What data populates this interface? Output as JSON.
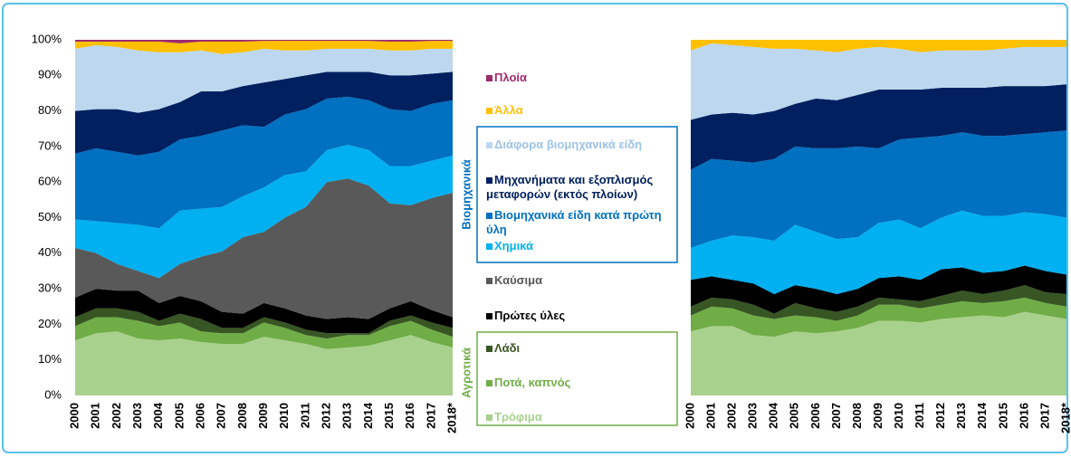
{
  "chart_data": [
    {
      "type": "area",
      "stacked": true,
      "x": [
        "2000",
        "2001",
        "2002",
        "2003",
        "2004",
        "2005",
        "2006",
        "2007",
        "2008",
        "2009",
        "2010",
        "2011",
        "2012",
        "2013",
        "2014",
        "2015",
        "2016",
        "2017",
        "2018*"
      ],
      "ylim": [
        0,
        100
      ],
      "yticks": [
        {
          "value": 0,
          "label": "0%"
        },
        {
          "value": 10,
          "label": "10%"
        },
        {
          "value": 20,
          "label": "20%"
        },
        {
          "value": 30,
          "label": "30%"
        },
        {
          "value": 40,
          "label": "40%"
        },
        {
          "value": 50,
          "label": "50%"
        },
        {
          "value": 60,
          "label": "60%"
        },
        {
          "value": 70,
          "label": "70%"
        },
        {
          "value": 80,
          "label": "80%"
        },
        {
          "value": 90,
          "label": "90%"
        },
        {
          "value": 100,
          "label": "100%"
        }
      ],
      "legend_groups": [
        "Βιομηχανικά",
        "Αγροτικά"
      ],
      "series": [
        {
          "name": "Τρόφιμα",
          "color": "#a9d18e",
          "values": [
            15.5,
            17.5,
            18,
            16,
            15.5,
            16,
            15,
            14.5,
            14.5,
            16.5,
            15.5,
            14.5,
            13,
            13.5,
            14,
            15.5,
            17,
            15,
            13.5
          ]
        },
        {
          "name": "Ποτά, καπνός",
          "color": "#70ad47",
          "values": [
            4,
            4.5,
            4,
            5,
            4,
            4.5,
            3,
            3,
            3,
            4,
            3.5,
            2.5,
            3,
            3.5,
            3,
            4,
            4,
            3.5,
            3
          ]
        },
        {
          "name": "Λάδι",
          "color": "#375623",
          "values": [
            2.5,
            2.5,
            2.5,
            2.5,
            1.5,
            2.5,
            3.5,
            1.5,
            1.5,
            1.5,
            1.5,
            1.5,
            1.5,
            0.5,
            0.5,
            1.5,
            1.5,
            2,
            2.5
          ]
        },
        {
          "name": "Πρώτες ύλες",
          "color": "#000000",
          "values": [
            5.5,
            5.5,
            5,
            6,
            5,
            5,
            5,
            4.5,
            4,
            4,
            4,
            4,
            4,
            4.5,
            4,
            3.5,
            4,
            3.5,
            3
          ]
        },
        {
          "name": "Καύσιμα",
          "color": "#595959",
          "values": [
            14,
            10,
            7.5,
            5.5,
            7,
            9,
            12.5,
            17,
            21.5,
            20,
            25.5,
            30.5,
            38.5,
            39,
            37.5,
            29.5,
            27,
            31.5,
            35
          ]
        },
        {
          "name": "Χημικά",
          "color": "#00b0f0",
          "values": [
            8,
            9,
            11.5,
            13,
            14,
            15,
            13.5,
            12.5,
            11.5,
            12.5,
            12,
            10,
            9,
            9.5,
            10,
            10.5,
            11,
            10.5,
            10.5
          ]
        },
        {
          "name": "Βιομηχανικά είδη κατά πρώτη ύλη",
          "color": "#0070c0",
          "values": [
            18.5,
            20.5,
            20,
            19.5,
            21.5,
            20,
            20.5,
            21.5,
            20,
            17,
            17,
            17.5,
            14.5,
            13.5,
            14,
            16,
            15.5,
            16,
            15.5
          ]
        },
        {
          "name": "Μηχανήματα και εξοπλισμός μεταφορών (εκτός πλοίων)",
          "color": "#002060",
          "values": [
            12,
            11,
            12,
            12,
            12,
            10.5,
            12.5,
            11,
            11,
            12.5,
            10,
            9.5,
            7.5,
            7,
            8,
            9.5,
            10,
            8.5,
            8
          ]
        },
        {
          "name": "Διάφορα βιομηχανικά είδη",
          "color": "#bdd7ee",
          "values": [
            17.5,
            18,
            17.5,
            17.5,
            16,
            14,
            11.5,
            10.5,
            9.5,
            9.5,
            8,
            7,
            6.5,
            6.5,
            6.5,
            7,
            7,
            7,
            6.5
          ]
        },
        {
          "name": "Άλλα",
          "color": "#ffc000",
          "values": [
            2,
            1,
            1.5,
            2.5,
            3,
            2.5,
            2.5,
            3.5,
            3,
            2.2,
            2.7,
            2.7,
            2.2,
            2.2,
            2.2,
            2.5,
            2.5,
            2.2,
            2.2
          ]
        },
        {
          "name": "Πλοία",
          "color": "#9e2a6e",
          "values": [
            0.5,
            0.5,
            0.5,
            0.5,
            0.5,
            1,
            0.5,
            0.5,
            0.5,
            0.3,
            0.3,
            0.3,
            0.3,
            0.3,
            0.3,
            0.5,
            0.5,
            0.3,
            0.3
          ]
        }
      ]
    },
    {
      "type": "area",
      "stacked": true,
      "x": [
        "2000",
        "2001",
        "2002",
        "2003",
        "2004",
        "2005",
        "2006",
        "2007",
        "2008",
        "2009",
        "2010",
        "2011",
        "2012",
        "2013",
        "2014",
        "2015",
        "2016",
        "2017",
        "2018*"
      ],
      "ylim": [
        0,
        100
      ],
      "series": [
        {
          "values": [
            18,
            19.5,
            19.5,
            17,
            16.5,
            18,
            17.5,
            18,
            19,
            21,
            21,
            20.5,
            21.5,
            22,
            22.5,
            22,
            23.5,
            22.5,
            21.5
          ]
        },
        {
          "values": [
            4.5,
            5.5,
            5,
            5.5,
            5,
            4.5,
            4.5,
            3,
            3.5,
            4.5,
            4.5,
            4,
            4,
            4.5,
            3.5,
            4.5,
            4,
            3.5,
            3.5
          ]
        },
        {
          "values": [
            2.5,
            2.5,
            2.5,
            3,
            1.5,
            3.5,
            2.5,
            2.5,
            2.5,
            2,
            1.5,
            2,
            2.5,
            3,
            2.5,
            3,
            3.5,
            3,
            3.5
          ]
        },
        {
          "values": [
            7.5,
            6,
            5.5,
            6,
            5.5,
            5,
            5.5,
            5,
            5,
            5.5,
            6.5,
            6,
            7.5,
            6.5,
            6,
            5.5,
            5.5,
            6,
            5.5
          ]
        },
        {
          "values": [
            0,
            0,
            0,
            0,
            0,
            0,
            0,
            0,
            0,
            0,
            0,
            0,
            0,
            0,
            0,
            0,
            0,
            0,
            0
          ]
        },
        {
          "values": [
            9,
            10,
            12.5,
            13,
            15,
            17,
            16,
            15.5,
            14.5,
            15.5,
            16,
            14.5,
            14.5,
            16,
            16,
            15.5,
            15,
            16,
            16
          ]
        },
        {
          "values": [
            22,
            23,
            21,
            21,
            23,
            22,
            23.5,
            25.5,
            25.5,
            21,
            22.5,
            25.5,
            23,
            22,
            22.5,
            22.5,
            22,
            23,
            24.5
          ]
        },
        {
          "values": [
            14,
            12.5,
            13.5,
            13.5,
            13.5,
            12,
            14,
            13.5,
            14.5,
            16.5,
            14,
            13.5,
            13.5,
            12.5,
            13.5,
            14,
            13.5,
            13,
            13
          ]
        },
        {
          "values": [
            19.5,
            20,
            19,
            19,
            17.5,
            15.5,
            13.5,
            13.5,
            13,
            12,
            11.5,
            10.5,
            10.5,
            10.5,
            10.5,
            10.5,
            11,
            11,
            10.5
          ]
        },
        {
          "values": [
            3,
            1,
            1.5,
            2,
            2.5,
            2.5,
            3,
            3.5,
            2.5,
            2,
            2.5,
            3.5,
            3,
            3,
            3,
            2.5,
            2,
            2,
            2
          ]
        },
        {
          "values": [
            0,
            0,
            0,
            0,
            0,
            0,
            0,
            0,
            0,
            0,
            0,
            0,
            0,
            0,
            0,
            0,
            0,
            0,
            0
          ]
        }
      ]
    }
  ]
}
